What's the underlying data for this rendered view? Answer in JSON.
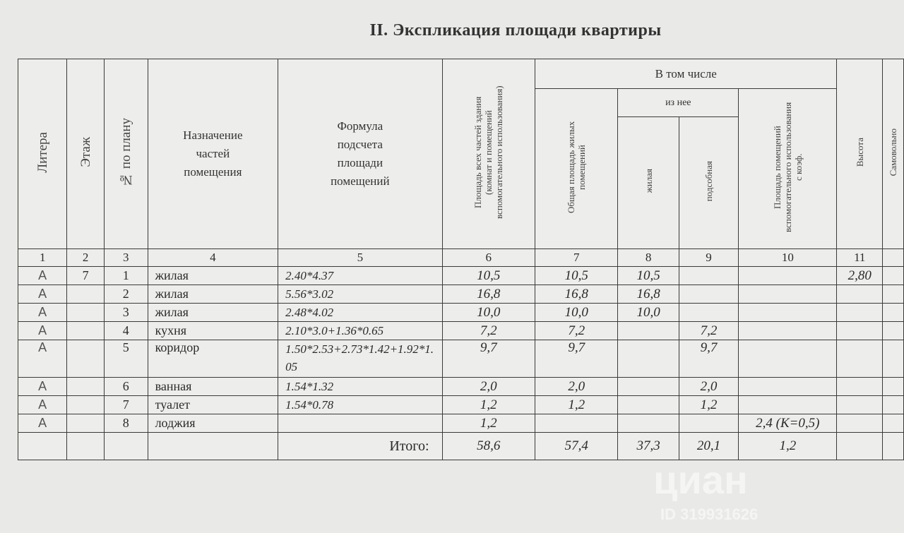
{
  "title": "II. Экспликация площади квартиры",
  "headers": {
    "litera": "Литера",
    "floor": "Этаж",
    "plan_no": "№ по плану",
    "purpose": "Назначение частей помещения",
    "formula": "Формула подсчета площади помещений",
    "total_area": "Площадь всех частей здания (комнат и помещений вспомогательного использования)",
    "including": "В том числе",
    "living_total": "Общая площадь жилых помещений",
    "of_which": "из нее",
    "living": "жилая",
    "auxiliary": "подсобная",
    "aux_coef": "Площадь помещений вспомогательного использования с коэф.",
    "height": "Высота",
    "extra": "Самовольно"
  },
  "column_numbers": [
    "1",
    "2",
    "3",
    "4",
    "5",
    "6",
    "7",
    "8",
    "9",
    "10",
    "11"
  ],
  "rows": [
    {
      "litera": "А",
      "floor": "7",
      "no": "1",
      "purpose": "жилая",
      "formula": "2.40*4.37",
      "total": "10,5",
      "living_total": "10,5",
      "living": "10,5",
      "aux": "",
      "aux_coef": "",
      "height": "2,80"
    },
    {
      "litera": "А",
      "floor": "",
      "no": "2",
      "purpose": "жилая",
      "formula": "5.56*3.02",
      "total": "16,8",
      "living_total": "16,8",
      "living": "16,8",
      "aux": "",
      "aux_coef": "",
      "height": ""
    },
    {
      "litera": "А",
      "floor": "",
      "no": "3",
      "purpose": "жилая",
      "formula": "2.48*4.02",
      "total": "10,0",
      "living_total": "10,0",
      "living": "10,0",
      "aux": "",
      "aux_coef": "",
      "height": ""
    },
    {
      "litera": "А",
      "floor": "",
      "no": "4",
      "purpose": "кухня",
      "formula": "2.10*3.0+1.36*0.65",
      "total": "7,2",
      "living_total": "7,2",
      "living": "",
      "aux": "7,2",
      "aux_coef": "",
      "height": ""
    },
    {
      "litera": "А",
      "floor": "",
      "no": "5",
      "purpose": "коридор",
      "formula": "1.50*2.53+2.73*1.42+1.92*1.05",
      "total": "9,7",
      "living_total": "9,7",
      "living": "",
      "aux": "9,7",
      "aux_coef": "",
      "height": ""
    },
    {
      "litera": "А",
      "floor": "",
      "no": "6",
      "purpose": "ванная",
      "formula": "1.54*1.32",
      "total": "2,0",
      "living_total": "2,0",
      "living": "",
      "aux": "2,0",
      "aux_coef": "",
      "height": ""
    },
    {
      "litera": "А",
      "floor": "",
      "no": "7",
      "purpose": "туалет",
      "formula": "1.54*0.78",
      "total": "1,2",
      "living_total": "1,2",
      "living": "",
      "aux": "1,2",
      "aux_coef": "",
      "height": ""
    },
    {
      "litera": "А",
      "floor": "",
      "no": "8",
      "purpose": "лоджия",
      "formula": "",
      "total": "1,2",
      "living_total": "",
      "living": "",
      "aux": "",
      "aux_coef": "2,4 (К=0,5)",
      "height": ""
    }
  ],
  "totals": {
    "label": "Итого:",
    "total": "58,6",
    "living_total": "57,4",
    "living": "37,3",
    "aux": "20,1",
    "aux_coef": "1,2"
  },
  "watermark": {
    "brand": "циан",
    "id": "ID 319931626"
  }
}
